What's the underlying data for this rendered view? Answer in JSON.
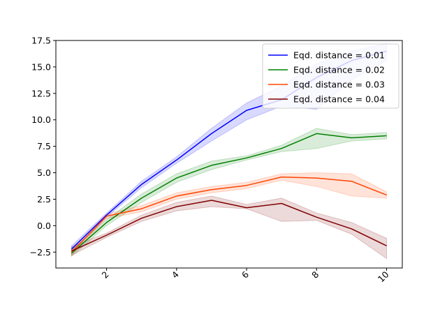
{
  "chart_data": {
    "type": "line",
    "title": "",
    "xlabel": "",
    "ylabel": "",
    "xlim": [
      0.55,
      10.45
    ],
    "ylim": [
      -4.0,
      17.5
    ],
    "x_ticks": [
      2,
      4,
      6,
      8,
      10
    ],
    "x_tick_labels": [
      "2",
      "4",
      "6",
      "8",
      "10"
    ],
    "y_ticks": [
      -2.5,
      0.0,
      2.5,
      5.0,
      7.5,
      10.0,
      12.5,
      15.0,
      17.5
    ],
    "y_tick_labels": [
      "−2.5",
      "0.0",
      "2.5",
      "5.0",
      "7.5",
      "10.0",
      "12.5",
      "15.0",
      "17.5"
    ],
    "x_tick_rotation": "45°",
    "grid": false,
    "legend_position": "top-right",
    "x": [
      1,
      2,
      3,
      4,
      5,
      6,
      7,
      8,
      9,
      10
    ],
    "series": [
      {
        "name": "Eqd. distance = 0.01",
        "color": "#0000ff",
        "values": [
          -2.2,
          1.0,
          3.9,
          6.2,
          8.7,
          10.9,
          11.9,
          14.0,
          15.6,
          16.5
        ],
        "lower": [
          -2.5,
          0.8,
          3.6,
          5.9,
          8.0,
          10.0,
          11.3,
          11.0,
          13.8,
          15.6
        ],
        "upper": [
          -1.9,
          1.2,
          4.2,
          6.5,
          9.2,
          11.6,
          13.2,
          15.3,
          16.5,
          17.2
        ]
      },
      {
        "name": "Eqd. distance = 0.02",
        "color": "#008000",
        "values": [
          -2.6,
          0.3,
          2.6,
          4.5,
          5.7,
          6.4,
          7.3,
          8.7,
          8.3,
          8.5
        ],
        "lower": [
          -2.9,
          0.0,
          2.2,
          4.1,
          5.3,
          6.2,
          7.0,
          7.3,
          8.0,
          8.2
        ],
        "upper": [
          -2.3,
          0.6,
          3.0,
          4.9,
          6.1,
          6.6,
          7.6,
          9.2,
          8.6,
          8.8
        ]
      },
      {
        "name": "Eqd. distance = 0.03",
        "color": "#ff4500",
        "values": [
          -2.5,
          0.9,
          1.6,
          2.8,
          3.4,
          3.8,
          4.6,
          4.5,
          4.2,
          2.9
        ],
        "lower": [
          -2.8,
          0.7,
          1.3,
          2.5,
          3.1,
          3.5,
          4.3,
          3.7,
          2.8,
          2.6
        ],
        "upper": [
          -2.2,
          1.1,
          1.9,
          3.1,
          3.7,
          4.1,
          4.9,
          5.0,
          4.9,
          3.2
        ]
      },
      {
        "name": "Eqd. distance = 0.04",
        "color": "#800000",
        "values": [
          -2.4,
          -0.9,
          0.7,
          1.8,
          2.4,
          1.7,
          2.1,
          0.8,
          -0.3,
          -1.9
        ],
        "lower": [
          -2.8,
          -1.1,
          0.4,
          1.4,
          1.8,
          1.6,
          0.4,
          0.5,
          -0.8,
          -3.1
        ],
        "upper": [
          -2.0,
          -0.7,
          1.0,
          2.2,
          2.8,
          2.0,
          2.6,
          1.2,
          0.3,
          -1.2
        ]
      }
    ]
  }
}
